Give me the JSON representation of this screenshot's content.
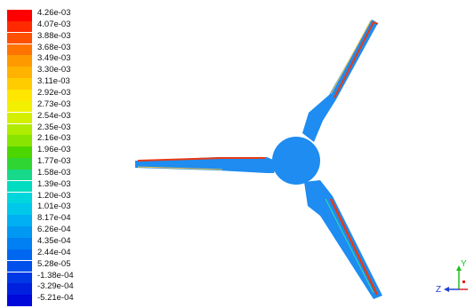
{
  "colormap": {
    "labels": [
      "4.26e-03",
      "4.07e-03",
      "3.88e-03",
      "3.68e-03",
      "3.49e-03",
      "3.30e-03",
      "3.11e-03",
      "2.92e-03",
      "2.73e-03",
      "2.54e-03",
      "2.35e-03",
      "2.16e-03",
      "1.96e-03",
      "1.77e-03",
      "1.58e-03",
      "1.39e-03",
      "1.20e-03",
      "1.01e-03",
      "8.17e-04",
      "6.26e-04",
      "4.35e-04",
      "2.44e-04",
      "5.28e-05",
      "-1.38e-04",
      "-3.29e-04",
      "-5.21e-04"
    ],
    "colors": [
      "#ff0000",
      "#ff2a00",
      "#ff4f00",
      "#ff7400",
      "#ff9900",
      "#ffb300",
      "#ffcc00",
      "#ffe600",
      "#f2f000",
      "#d4ee00",
      "#b0ec00",
      "#88e400",
      "#4cd600",
      "#2fd633",
      "#16d98a",
      "#00dcc0",
      "#00d6dc",
      "#00c8ea",
      "#00b0f2",
      "#0098f2",
      "#0080f2",
      "#0068f0",
      "#0050ec",
      "#0038e6",
      "#0020e0",
      "#0008da"
    ]
  },
  "blades": {
    "surface_color": "#1e8cf0",
    "hub_color": "#1e8cf0",
    "hot_edge_color": "#e83a14",
    "warm_edge_color": "#f0c040",
    "mid_edge_color": "#30e0b0"
  },
  "triad": {
    "y_label": "Y",
    "z_label": "Z",
    "x_label": "X",
    "y_color": "#20c020",
    "z_color": "#2040d0",
    "x_color": "#e02020"
  }
}
